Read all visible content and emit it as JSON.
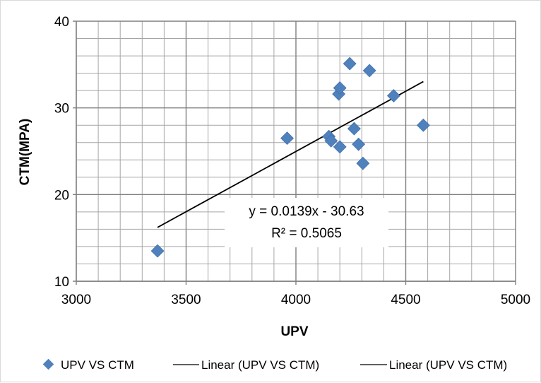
{
  "chart_data": {
    "type": "scatter",
    "title": "",
    "xlabel": "UPV",
    "ylabel": "CTM(MPA)",
    "xlim": [
      3000,
      5000
    ],
    "ylim": [
      10,
      40
    ],
    "x_ticks": [
      3000,
      3500,
      4000,
      4500,
      5000
    ],
    "y_ticks": [
      10,
      20,
      30,
      40
    ],
    "x_minor_step": 100,
    "y_minor_step": 2,
    "grid": true,
    "legend_position": "bottom",
    "series": [
      {
        "name": "UPV VS CTM",
        "marker": "diamond",
        "color": "#4f81bd",
        "points": [
          {
            "x": 3370,
            "y": 13.5
          },
          {
            "x": 3960,
            "y": 26.5
          },
          {
            "x": 4150,
            "y": 26.7
          },
          {
            "x": 4160,
            "y": 26.2
          },
          {
            "x": 4200,
            "y": 25.5
          },
          {
            "x": 4195,
            "y": 31.6
          },
          {
            "x": 4200,
            "y": 32.3
          },
          {
            "x": 4245,
            "y": 35.1
          },
          {
            "x": 4265,
            "y": 27.6
          },
          {
            "x": 4285,
            "y": 25.8
          },
          {
            "x": 4305,
            "y": 23.6
          },
          {
            "x": 4335,
            "y": 34.3
          },
          {
            "x": 4445,
            "y": 31.4
          },
          {
            "x": 4580,
            "y": 28.0
          }
        ]
      }
    ],
    "trendline": {
      "name": "Linear (UPV VS CTM)",
      "slope": 0.0139,
      "intercept": -30.63,
      "x_range": [
        3370,
        4580
      ],
      "color": "#000000",
      "equation": "y = 0.0139x - 30.63",
      "r_squared": "R² = 0.5065"
    },
    "legend": [
      {
        "label": "UPV VS CTM",
        "symbol": "diamond"
      },
      {
        "label": "Linear (UPV VS CTM)",
        "symbol": "line"
      },
      {
        "label": "Linear (UPV VS CTM)",
        "symbol": "line"
      }
    ]
  }
}
